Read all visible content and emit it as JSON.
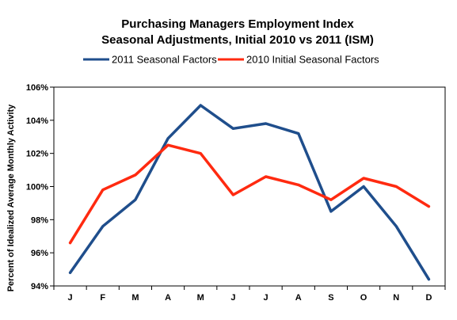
{
  "chart_data": {
    "type": "line",
    "title": "Purchasing Managers Employment Index",
    "subtitle": "Seasonal Adjustments, Initial 2010 vs 2011 (ISM)",
    "xlabel": "",
    "ylabel": "Percent of Idealized Average Monthly Activity",
    "categories": [
      "J",
      "F",
      "M",
      "A",
      "M",
      "J",
      "J",
      "A",
      "S",
      "O",
      "N",
      "D"
    ],
    "ylim": [
      94,
      106
    ],
    "yticks": [
      "94%",
      "96%",
      "98%",
      "100%",
      "102%",
      "104%",
      "106%"
    ],
    "grid": false,
    "legend_position": "top",
    "series": [
      {
        "name": "2011 Seasonal Factors",
        "color": "#1f4e8c",
        "values": [
          94.8,
          97.6,
          99.2,
          102.9,
          104.9,
          103.5,
          103.8,
          103.2,
          98.5,
          100.0,
          97.6,
          94.4
        ]
      },
      {
        "name": "2010 Initial Seasonal Factors",
        "color": "#ff2a10",
        "values": [
          96.6,
          99.8,
          100.7,
          102.5,
          102.0,
          99.5,
          100.6,
          100.1,
          99.2,
          100.5,
          100.0,
          98.8
        ]
      }
    ]
  }
}
